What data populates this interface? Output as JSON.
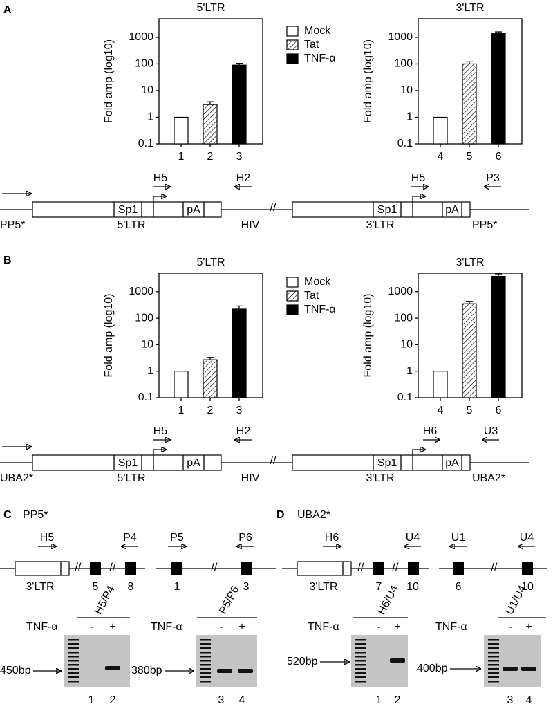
{
  "panel_labels": [
    "A",
    "B",
    "C",
    "D"
  ],
  "chart_data": [
    {
      "type": "bar",
      "title": "5'LTR",
      "y_label": "Fold amp (log10)",
      "log_scale": true,
      "legend": "right",
      "categories": [
        "1",
        "2",
        "3"
      ],
      "series": [
        {
          "name": "Mock",
          "color": "#ffffff",
          "hatched": false,
          "values": [
            1,
            null,
            null
          ],
          "errors": [
            null,
            null,
            null
          ]
        },
        {
          "name": "Tat",
          "color": "#ffffff",
          "hatched": true,
          "values": [
            null,
            3,
            null
          ],
          "errors": [
            null,
            0.8,
            null
          ]
        },
        {
          "name": "TNF-α",
          "color": "#000000",
          "hatched": false,
          "values": [
            null,
            null,
            90
          ],
          "errors": [
            null,
            null,
            15
          ]
        }
      ],
      "ylim": [
        0.1,
        5000
      ],
      "yticks": [
        0.1,
        1,
        10,
        100,
        1000
      ]
    },
    {
      "type": "bar",
      "title": "3'LTR",
      "y_label": "Fold amp (log10)",
      "log_scale": true,
      "categories": [
        "4",
        "5",
        "6"
      ],
      "series": [
        {
          "color": "#ffffff",
          "hatched": false,
          "values": [
            1,
            null,
            null
          ],
          "errors": [
            null,
            null,
            null
          ]
        },
        {
          "color": "#ffffff",
          "hatched": true,
          "values": [
            null,
            100,
            null
          ],
          "errors": [
            null,
            20,
            null
          ]
        },
        {
          "color": "#000000",
          "hatched": false,
          "values": [
            null,
            null,
            1400
          ],
          "errors": [
            null,
            null,
            200
          ]
        }
      ],
      "ylim": [
        0.1,
        5000
      ],
      "yticks": [
        0.1,
        1,
        10,
        100,
        1000
      ]
    },
    {
      "type": "bar",
      "title": "5'LTR",
      "y_label": "Fold amp (log10)",
      "log_scale": true,
      "legend": "right",
      "categories": [
        "1",
        "2",
        "3"
      ],
      "series": [
        {
          "name": "Mock",
          "color": "#ffffff",
          "hatched": false,
          "values": [
            1,
            null,
            null
          ],
          "errors": [
            null,
            null,
            null
          ]
        },
        {
          "name": "Tat",
          "color": "#ffffff",
          "hatched": true,
          "values": [
            null,
            2.7,
            null
          ],
          "errors": [
            null,
            0.6,
            null
          ]
        },
        {
          "name": "TNF-α",
          "color": "#000000",
          "hatched": false,
          "values": [
            null,
            null,
            220
          ],
          "errors": [
            null,
            null,
            70
          ]
        }
      ],
      "ylim": [
        0.1,
        5000
      ],
      "yticks": [
        0.1,
        1,
        10,
        100,
        1000
      ]
    },
    {
      "type": "bar",
      "title": "3'LTR",
      "y_label": "Fold amp (log10)",
      "log_scale": true,
      "categories": [
        "4",
        "5",
        "6"
      ],
      "series": [
        {
          "color": "#ffffff",
          "hatched": false,
          "values": [
            1,
            null,
            null
          ],
          "errors": [
            null,
            null,
            null
          ]
        },
        {
          "color": "#ffffff",
          "hatched": true,
          "values": [
            null,
            350,
            null
          ],
          "errors": [
            null,
            80,
            null
          ]
        },
        {
          "color": "#000000",
          "hatched": false,
          "values": [
            null,
            null,
            3800
          ],
          "errors": [
            null,
            null,
            900
          ]
        }
      ],
      "ylim": [
        0.1,
        5000
      ],
      "yticks": [
        0.1,
        1,
        10,
        100,
        1000
      ]
    }
  ],
  "maps": [
    {
      "primers": [
        "H5",
        "H2",
        "H5",
        "P3"
      ],
      "elements": [
        "Sp1",
        "pA",
        "Sp1",
        "pA"
      ],
      "labels": [
        "PP5*",
        "5'LTR",
        "HIV",
        "3'LTR",
        "PP5*"
      ]
    },
    {
      "primers": [
        "H5",
        "H2",
        "H6",
        "U3"
      ],
      "elements": [
        "Sp1",
        "pA",
        "Sp1",
        "pA"
      ],
      "labels": [
        "UBA2*",
        "5'LTR",
        "HIV",
        "3'LTR",
        "UBA2*"
      ]
    }
  ],
  "gel_panels": [
    {
      "title": "PP5*",
      "maps": [
        {
          "primers": [
            "H5",
            "P4"
          ],
          "labels": [
            "3'LTR",
            "5",
            "8"
          ]
        },
        {
          "primers": [
            "P5",
            "P6"
          ],
          "labels": [
            "1",
            "3"
          ]
        }
      ],
      "gels": [
        {
          "pair": "H5/P4",
          "treatment": "TNF-α",
          "conditions": [
            "-",
            "+"
          ],
          "marker": "450bp",
          "lanes": [
            "1",
            "2"
          ]
        },
        {
          "pair": "P5/P6",
          "treatment": "TNF-α",
          "conditions": [
            "-",
            "+"
          ],
          "marker": "380bp",
          "lanes": [
            "3",
            "4"
          ]
        }
      ]
    },
    {
      "title": "UBA2*",
      "maps": [
        {
          "primers": [
            "H6",
            "U4"
          ],
          "labels": [
            "3'LTR",
            "7",
            "10"
          ]
        },
        {
          "primers": [
            "U1",
            "U4"
          ],
          "labels": [
            "6",
            "10"
          ]
        }
      ],
      "gels": [
        {
          "pair": "H6/U4",
          "treatment": "TNF-α",
          "conditions": [
            "-",
            "+"
          ],
          "marker": "520bp",
          "lanes": [
            "1",
            "2"
          ]
        },
        {
          "pair": "U1/U4",
          "treatment": "TNF-α",
          "conditions": [
            "-",
            "+"
          ],
          "marker": "400bp",
          "lanes": [
            "3",
            "4"
          ]
        }
      ]
    }
  ]
}
